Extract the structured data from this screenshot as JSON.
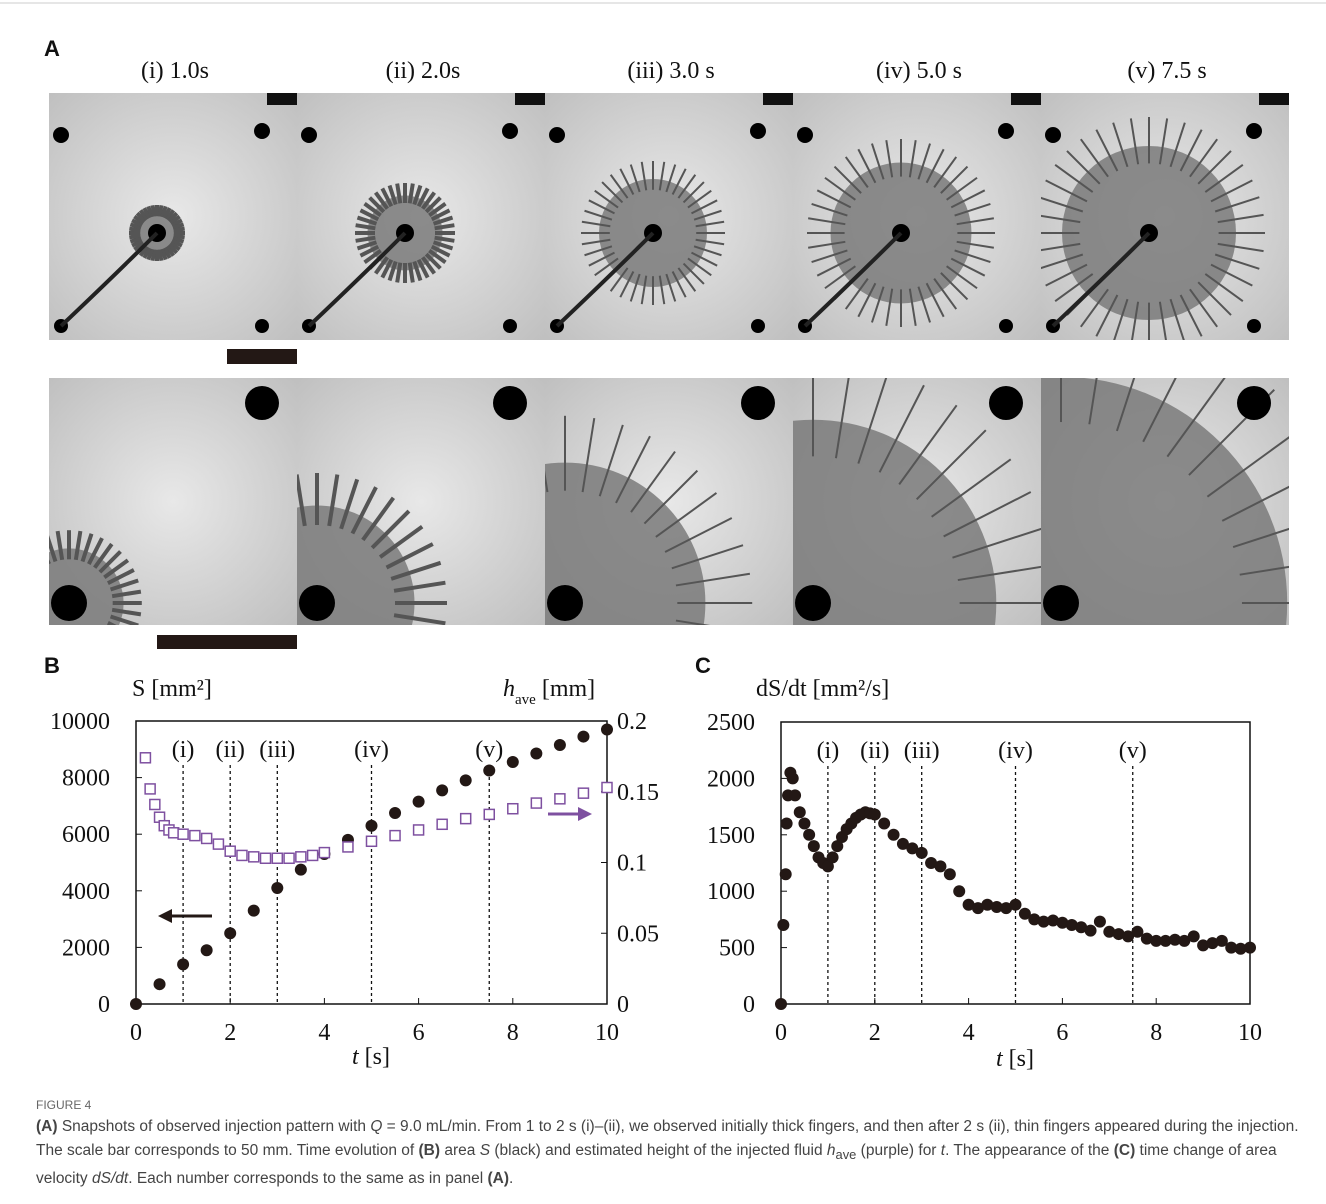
{
  "panel_a": {
    "label": "A",
    "titles": [
      "(i) 1.0s",
      "(ii) 2.0s",
      "(iii) 3.0 s",
      "(iv) 5.0 s",
      "(v) 7.5 s"
    ]
  },
  "chart_data": [
    {
      "type": "scatter",
      "label": "B",
      "ylabel": "S [mm²]",
      "y2label": {
        "main": "h",
        "sub": "ave",
        "unit": " [mm]"
      },
      "xlabel": {
        "main": "t",
        "unit": " [s]"
      },
      "xlim": [
        0,
        10
      ],
      "xticks": [
        0,
        2,
        4,
        6,
        8,
        10
      ],
      "ylim": [
        0,
        10000
      ],
      "yticks": [
        0,
        2000,
        4000,
        6000,
        8000,
        10000
      ],
      "y2lim": [
        0,
        0.2
      ],
      "y2ticks": [
        0,
        0.05,
        0.1,
        0.15,
        0.2
      ],
      "annotations": [
        {
          "x": 1,
          "label": "(i)"
        },
        {
          "x": 2,
          "label": "(ii)"
        },
        {
          "x": 3,
          "label": "(iii)"
        },
        {
          "x": 5,
          "label": "(iv)"
        },
        {
          "x": 7.5,
          "label": "(v)"
        }
      ],
      "series": [
        {
          "color": "#231815",
          "marker": "circle",
          "axis": "y",
          "x": [
            0,
            0.5,
            1,
            1.5,
            2,
            2.5,
            3,
            3.5,
            4,
            4.5,
            5,
            5.5,
            6,
            6.5,
            7,
            7.5,
            8,
            8.5,
            9,
            9.5,
            10
          ],
          "values": [
            0,
            700,
            1400,
            1900,
            2500,
            3300,
            4100,
            4750,
            5300,
            5800,
            6300,
            6750,
            7150,
            7550,
            7900,
            8250,
            8550,
            8850,
            9150,
            9450,
            9700
          ]
        },
        {
          "color": "#7e50a0",
          "marker": "square",
          "axis": "y2",
          "x": [
            0.2,
            0.3,
            0.4,
            0.5,
            0.6,
            0.7,
            0.8,
            1,
            1.25,
            1.5,
            1.75,
            2,
            2.25,
            2.5,
            2.75,
            3,
            3.25,
            3.5,
            3.75,
            4,
            4.5,
            5,
            5.5,
            6,
            6.5,
            7,
            7.5,
            8,
            8.5,
            9,
            9.5,
            10
          ],
          "values": [
            0.174,
            0.152,
            0.141,
            0.132,
            0.126,
            0.123,
            0.121,
            0.12,
            0.119,
            0.117,
            0.113,
            0.108,
            0.105,
            0.104,
            0.103,
            0.103,
            0.103,
            0.104,
            0.105,
            0.107,
            0.111,
            0.115,
            0.119,
            0.123,
            0.127,
            0.131,
            0.134,
            0.138,
            0.142,
            0.145,
            0.149,
            0.153
          ]
        }
      ]
    },
    {
      "type": "scatter",
      "label": "C",
      "ylabel": "dS/dt [mm²/s]",
      "xlabel": {
        "main": "t",
        "unit": " [s]"
      },
      "xlim": [
        0,
        10
      ],
      "xticks": [
        0,
        2,
        4,
        6,
        8,
        10
      ],
      "ylim": [
        0,
        2500
      ],
      "yticks": [
        0,
        500,
        1000,
        1500,
        2000,
        2500
      ],
      "annotations": [
        {
          "x": 1,
          "label": "(i)"
        },
        {
          "x": 2,
          "label": "(ii)"
        },
        {
          "x": 3,
          "label": "(iii)"
        },
        {
          "x": 5,
          "label": "(iv)"
        },
        {
          "x": 7.5,
          "label": "(v)"
        }
      ],
      "series": [
        {
          "color": "#231815",
          "marker": "circle",
          "axis": "y",
          "x": [
            0,
            0.05,
            0.1,
            0.12,
            0.15,
            0.2,
            0.25,
            0.3,
            0.4,
            0.5,
            0.6,
            0.7,
            0.8,
            0.9,
            1.0,
            1.1,
            1.2,
            1.3,
            1.4,
            1.5,
            1.6,
            1.7,
            1.8,
            1.9,
            2.0,
            2.2,
            2.4,
            2.6,
            2.8,
            3.0,
            3.2,
            3.4,
            3.6,
            3.8,
            4.0,
            4.2,
            4.4,
            4.6,
            4.8,
            5.0,
            5.2,
            5.4,
            5.6,
            5.8,
            6.0,
            6.2,
            6.4,
            6.6,
            6.8,
            7.0,
            7.2,
            7.4,
            7.6,
            7.8,
            8.0,
            8.2,
            8.4,
            8.6,
            8.8,
            9.0,
            9.2,
            9.4,
            9.6,
            9.8,
            10
          ],
          "values": [
            0,
            700,
            1150,
            1600,
            1850,
            2050,
            2000,
            1850,
            1700,
            1600,
            1500,
            1400,
            1300,
            1250,
            1220,
            1300,
            1400,
            1480,
            1550,
            1600,
            1650,
            1680,
            1700,
            1690,
            1680,
            1600,
            1500,
            1420,
            1380,
            1340,
            1250,
            1220,
            1150,
            1000,
            880,
            850,
            880,
            860,
            850,
            880,
            800,
            750,
            730,
            740,
            720,
            700,
            680,
            650,
            730,
            640,
            620,
            600,
            640,
            580,
            560,
            560,
            570,
            560,
            600,
            520,
            540,
            560,
            500,
            490,
            500
          ]
        }
      ]
    }
  ],
  "caption": {
    "figure": "FIGURE 4",
    "parts": [
      "(A)",
      " Snapshots of observed injection pattern with ",
      "Q",
      " = 9.0 mL/min. From 1 to 2 s (i)–(ii), we observed initially thick fingers, and then after 2 s (ii), thin fingers appeared during the injection. The scale bar corresponds to 50 mm. Time evolution of ",
      "(B)",
      " area ",
      "S",
      " (black) and estimated height of the injected fluid ",
      "h",
      "ave",
      " (purple) for ",
      "t",
      ". The appearance of the ",
      "(C)",
      " time change of area velocity ",
      "dS/dt",
      ". Each number corresponds to the same as in panel ",
      "(A)",
      "."
    ]
  }
}
